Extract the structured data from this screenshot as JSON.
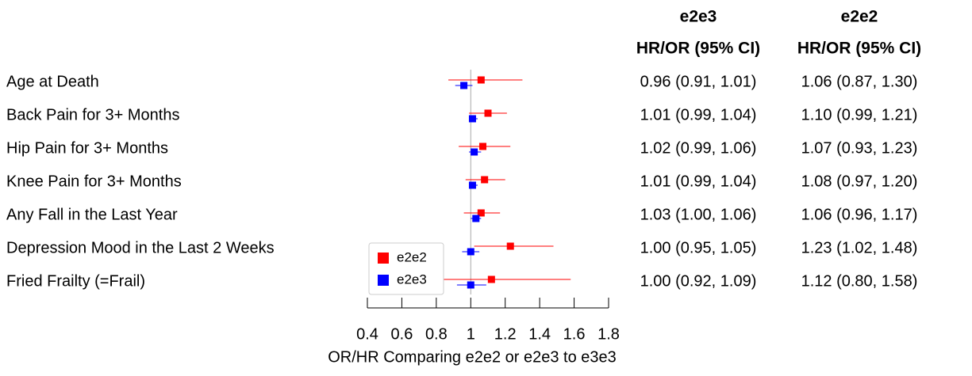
{
  "chart_data": {
    "type": "forest",
    "x_label": "OR/HR Comparing e2e2 or e2e3 to e3e3",
    "ci_header": "HR/OR (95% CI)",
    "categories": [
      "Age at Death",
      "Back Pain for 3+ Months",
      "Hip Pain for 3+ Months",
      "Knee Pain for 3+ Months",
      "Any Fall in the Last Year",
      "Depression Mood in the Last 2 Weeks",
      "Fried Frailty (=Frail)"
    ],
    "series": [
      {
        "name": "e2e3",
        "color": "#0000ff",
        "values": [
          0.96,
          1.01,
          1.02,
          1.01,
          1.03,
          1.0,
          1.0
        ],
        "lower": [
          0.91,
          0.99,
          0.99,
          0.99,
          1.0,
          0.95,
          0.92
        ],
        "upper": [
          1.01,
          1.04,
          1.06,
          1.04,
          1.06,
          1.05,
          1.09
        ],
        "value_labels": [
          "0.96 (0.91, 1.01)",
          "1.01 (0.99, 1.04)",
          "1.02 (0.99, 1.06)",
          "1.01 (0.99, 1.04)",
          "1.03 (1.00, 1.06)",
          "1.00 (0.95, 1.05)",
          "1.00 (0.92, 1.09)"
        ]
      },
      {
        "name": "e2e2",
        "color": "#ff0000",
        "values": [
          1.06,
          1.1,
          1.07,
          1.08,
          1.06,
          1.23,
          1.12
        ],
        "lower": [
          0.87,
          0.99,
          0.93,
          0.97,
          0.96,
          1.02,
          0.8
        ],
        "upper": [
          1.3,
          1.21,
          1.23,
          1.2,
          1.17,
          1.48,
          1.58
        ],
        "value_labels": [
          "1.06 (0.87, 1.30)",
          "1.10 (0.99, 1.21)",
          "1.07 (0.93, 1.23)",
          "1.08 (0.97, 1.20)",
          "1.06 (0.96, 1.17)",
          "1.23 (1.02, 1.48)",
          "1.12 (0.80, 1.58)"
        ]
      }
    ],
    "reference_line": 1,
    "xlim": [
      0.4,
      1.8
    ],
    "xticks": [
      0.4,
      0.6,
      0.8,
      1,
      1.2,
      1.4,
      1.6,
      1.8
    ]
  }
}
